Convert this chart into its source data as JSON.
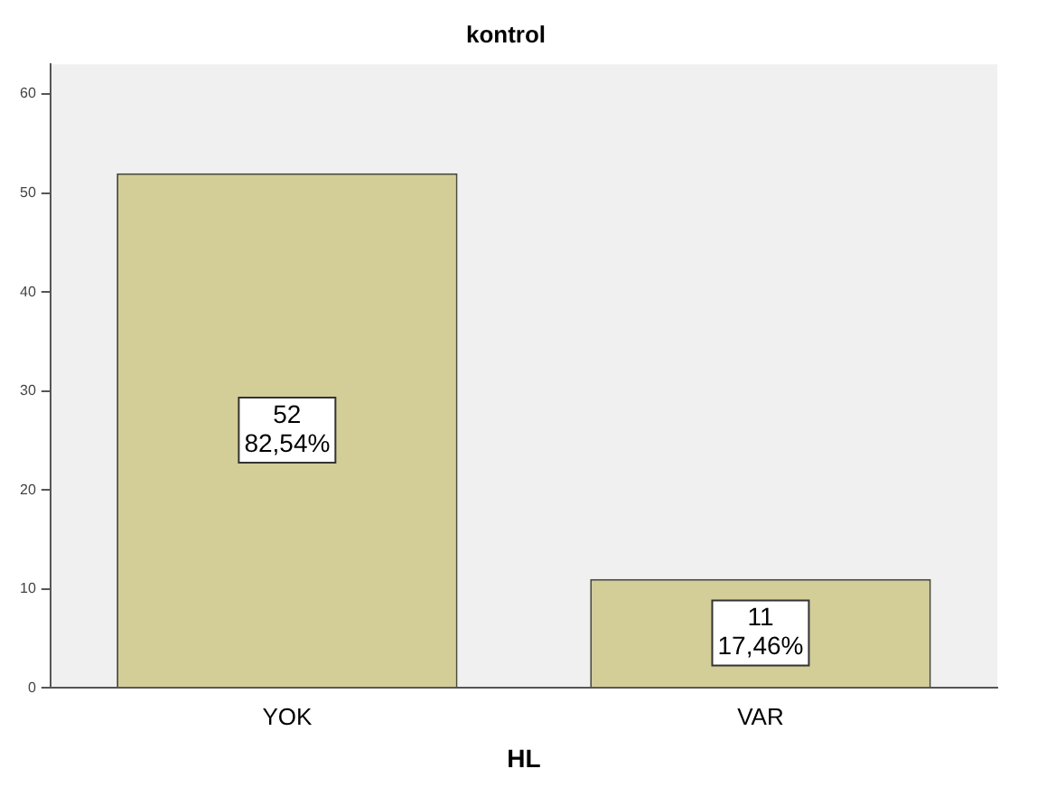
{
  "chart_data": {
    "type": "bar",
    "title": "kontrol",
    "xlabel": "HL",
    "categories": [
      "YOK",
      "VAR"
    ],
    "values": [
      52,
      11
    ],
    "color": "#d3cd98",
    "value_labels": [
      "52\n82,54%",
      "11\n17,46%"
    ],
    "ylim": [
      0,
      63
    ],
    "yticks": [
      0,
      10,
      20,
      30,
      40,
      50,
      60
    ],
    "grid": false
  }
}
